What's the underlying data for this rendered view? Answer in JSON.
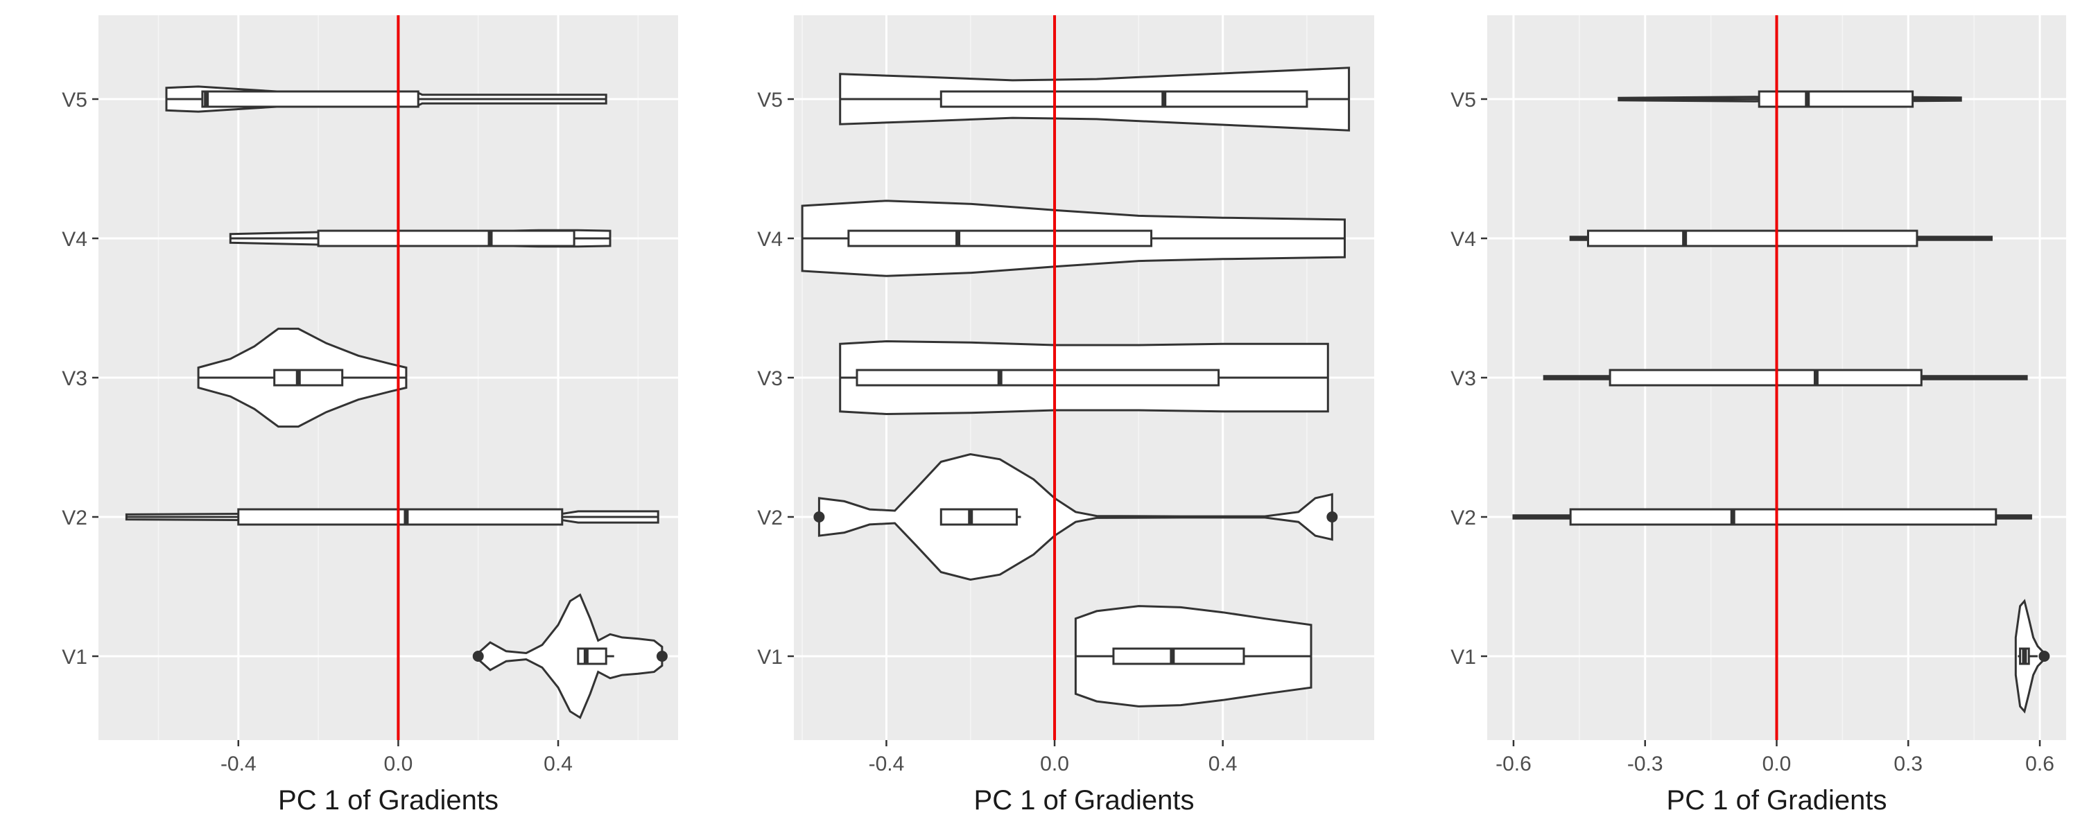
{
  "colors": {
    "panel_bg": "#ebebeb",
    "grid_major": "#ffffff",
    "grid_minor": "#f5f5f5",
    "mark_stroke": "#333333",
    "mark_fill": "#ffffff",
    "ref_line": "#ee0000",
    "tick_text": "#4d4d4d",
    "axis_title_text": "#1a1a1a"
  },
  "chart_data": [
    {
      "type": "violin",
      "xlabel": "PC 1 of Gradients",
      "ylabel": "",
      "xlim": [
        -0.75,
        0.7
      ],
      "xticks": [
        -0.4,
        0.0,
        0.4
      ],
      "xtick_labels": [
        "-0.4",
        "0.0",
        "0.4"
      ],
      "categories": [
        "V1",
        "V2",
        "V3",
        "V4",
        "V5"
      ],
      "grid": true,
      "reference_line": {
        "x": 0,
        "color": "#ee0000"
      },
      "series": [
        {
          "category": "V1",
          "min": 0.2,
          "max": 0.66,
          "q1": 0.45,
          "median": 0.47,
          "q3": 0.52,
          "whisker_low": 0.45,
          "whisker_high": 0.54,
          "outliers": [
            0.2,
            0.66
          ],
          "density": [
            [
              0.2,
              0.05
            ],
            [
              0.23,
              0.22
            ],
            [
              0.27,
              0.08
            ],
            [
              0.32,
              0.05
            ],
            [
              0.36,
              0.18
            ],
            [
              0.4,
              0.5
            ],
            [
              0.43,
              0.88
            ],
            [
              0.455,
              0.98
            ],
            [
              0.48,
              0.6
            ],
            [
              0.5,
              0.25
            ],
            [
              0.53,
              0.35
            ],
            [
              0.56,
              0.3
            ],
            [
              0.6,
              0.28
            ],
            [
              0.64,
              0.25
            ],
            [
              0.66,
              0.15
            ]
          ]
        },
        {
          "category": "V2",
          "min": -0.68,
          "max": 0.65,
          "q1": -0.4,
          "median": 0.02,
          "q3": 0.41,
          "whisker_low": -0.68,
          "whisker_high": 0.65,
          "outliers": [],
          "density": [
            [
              -0.68,
              0.04
            ],
            [
              -0.4,
              0.05
            ],
            [
              0.0,
              0.05
            ],
            [
              0.41,
              0.05
            ],
            [
              0.45,
              0.09
            ],
            [
              0.65,
              0.09
            ]
          ]
        },
        {
          "category": "V3",
          "min": -0.5,
          "max": 0.02,
          "q1": -0.31,
          "median": -0.25,
          "q3": -0.14,
          "whisker_low": -0.5,
          "whisker_high": 0.02,
          "outliers": [],
          "density": [
            [
              -0.5,
              0.16
            ],
            [
              -0.42,
              0.3
            ],
            [
              -0.36,
              0.5
            ],
            [
              -0.3,
              0.78
            ],
            [
              -0.25,
              0.78
            ],
            [
              -0.18,
              0.55
            ],
            [
              -0.1,
              0.35
            ],
            [
              -0.02,
              0.22
            ],
            [
              0.02,
              0.16
            ]
          ]
        },
        {
          "category": "V4",
          "min": -0.42,
          "max": 0.53,
          "q1": -0.2,
          "median": 0.23,
          "q3": 0.44,
          "whisker_low": -0.42,
          "whisker_high": 0.53,
          "outliers": [],
          "density": [
            [
              -0.42,
              0.07
            ],
            [
              -0.2,
              0.1
            ],
            [
              0.0,
              0.1
            ],
            [
              0.2,
              0.11
            ],
            [
              0.35,
              0.13
            ],
            [
              0.45,
              0.13
            ],
            [
              0.53,
              0.12
            ]
          ]
        },
        {
          "category": "V5",
          "min": -0.58,
          "max": 0.52,
          "q1": -0.49,
          "median": -0.48,
          "q3": 0.05,
          "whisker_low": -0.58,
          "whisker_high": 0.52,
          "outliers": [],
          "density": [
            [
              -0.58,
              0.18
            ],
            [
              -0.5,
              0.2
            ],
            [
              -0.4,
              0.16
            ],
            [
              -0.3,
              0.12
            ],
            [
              -0.1,
              0.11
            ],
            [
              0.05,
              0.1
            ],
            [
              0.06,
              0.07
            ],
            [
              0.3,
              0.07
            ],
            [
              0.52,
              0.07
            ]
          ]
        }
      ]
    },
    {
      "type": "violin",
      "xlabel": "PC 1 of Gradients",
      "ylabel": "",
      "xlim": [
        -0.62,
        0.76
      ],
      "xticks": [
        -0.4,
        0.0,
        0.4
      ],
      "xtick_labels": [
        "-0.4",
        "0.0",
        "0.4"
      ],
      "categories": [
        "V1",
        "V2",
        "V3",
        "V4",
        "V5"
      ],
      "grid": true,
      "reference_line": {
        "x": 0,
        "color": "#ee0000"
      },
      "series": [
        {
          "category": "V1",
          "min": 0.05,
          "max": 0.61,
          "q1": 0.14,
          "median": 0.28,
          "q3": 0.45,
          "whisker_low": 0.05,
          "whisker_high": 0.61,
          "outliers": [],
          "density": [
            [
              0.05,
              0.6
            ],
            [
              0.1,
              0.72
            ],
            [
              0.2,
              0.8
            ],
            [
              0.3,
              0.78
            ],
            [
              0.4,
              0.7
            ],
            [
              0.5,
              0.6
            ],
            [
              0.61,
              0.5
            ]
          ]
        },
        {
          "category": "V2",
          "min": -0.56,
          "max": 0.66,
          "q1": -0.27,
          "median": -0.2,
          "q3": -0.09,
          "whisker_low": -0.27,
          "whisker_high": -0.08,
          "outliers": [
            -0.56,
            0.66
          ],
          "density": [
            [
              -0.56,
              0.3
            ],
            [
              -0.5,
              0.25
            ],
            [
              -0.44,
              0.12
            ],
            [
              -0.38,
              0.1
            ],
            [
              -0.33,
              0.45
            ],
            [
              -0.27,
              0.88
            ],
            [
              -0.2,
              1.0
            ],
            [
              -0.13,
              0.92
            ],
            [
              -0.05,
              0.6
            ],
            [
              0.0,
              0.3
            ],
            [
              0.05,
              0.08
            ],
            [
              0.1,
              0.015
            ],
            [
              0.3,
              0.01
            ],
            [
              0.5,
              0.01
            ],
            [
              0.58,
              0.08
            ],
            [
              0.62,
              0.3
            ],
            [
              0.66,
              0.36
            ]
          ]
        },
        {
          "category": "V3",
          "min": -0.51,
          "max": 0.65,
          "q1": -0.47,
          "median": -0.13,
          "q3": 0.39,
          "whisker_low": -0.51,
          "whisker_high": 0.65,
          "outliers": [],
          "density": [
            [
              -0.51,
              0.54
            ],
            [
              -0.4,
              0.58
            ],
            [
              -0.2,
              0.56
            ],
            [
              0.0,
              0.52
            ],
            [
              0.2,
              0.52
            ],
            [
              0.4,
              0.54
            ],
            [
              0.65,
              0.54
            ]
          ]
        },
        {
          "category": "V4",
          "min": -0.6,
          "max": 0.69,
          "q1": -0.49,
          "median": -0.23,
          "q3": 0.23,
          "whisker_low": -0.6,
          "whisker_high": 0.69,
          "outliers": [],
          "density": [
            [
              -0.6,
              0.52
            ],
            [
              -0.4,
              0.6
            ],
            [
              -0.2,
              0.55
            ],
            [
              0.0,
              0.45
            ],
            [
              0.2,
              0.36
            ],
            [
              0.4,
              0.33
            ],
            [
              0.69,
              0.3
            ]
          ]
        },
        {
          "category": "V5",
          "min": -0.51,
          "max": 0.7,
          "q1": -0.27,
          "median": 0.26,
          "q3": 0.6,
          "whisker_low": -0.51,
          "whisker_high": 0.7,
          "outliers": [],
          "density": [
            [
              -0.51,
              0.4
            ],
            [
              -0.3,
              0.35
            ],
            [
              -0.1,
              0.3
            ],
            [
              0.1,
              0.32
            ],
            [
              0.3,
              0.38
            ],
            [
              0.5,
              0.44
            ],
            [
              0.7,
              0.5
            ]
          ]
        }
      ]
    },
    {
      "type": "violin",
      "xlabel": "PC 1 of Gradients",
      "ylabel": "",
      "xlim": [
        -0.66,
        0.66
      ],
      "xticks": [
        -0.6,
        -0.3,
        0.0,
        0.3,
        0.6
      ],
      "xtick_labels": [
        "-0.6",
        "-0.3",
        "0.0",
        "0.3",
        "0.6"
      ],
      "categories": [
        "V1",
        "V2",
        "V3",
        "V4",
        "V5"
      ],
      "grid": true,
      "reference_line": {
        "x": 0,
        "color": "#ee0000"
      },
      "series": [
        {
          "category": "V1",
          "min": 0.545,
          "max": 0.61,
          "q1": 0.555,
          "median": 0.565,
          "q3": 0.575,
          "whisker_low": 0.55,
          "whisker_high": 0.595,
          "outliers": [
            0.61
          ],
          "density": [
            [
              0.545,
              0.3
            ],
            [
              0.555,
              0.8
            ],
            [
              0.565,
              0.88
            ],
            [
              0.575,
              0.6
            ],
            [
              0.585,
              0.3
            ],
            [
              0.595,
              0.16
            ],
            [
              0.61,
              0.05
            ]
          ]
        },
        {
          "category": "V2",
          "min": -0.6,
          "max": 0.58,
          "q1": -0.47,
          "median": -0.1,
          "q3": 0.5,
          "whisker_low": -0.6,
          "whisker_high": 0.58,
          "outliers": [],
          "density": [
            [
              -0.6,
              0.025
            ],
            [
              0.0,
              0.025
            ],
            [
              0.58,
              0.025
            ]
          ]
        },
        {
          "category": "V3",
          "min": -0.53,
          "max": 0.57,
          "q1": -0.38,
          "median": 0.09,
          "q3": 0.33,
          "whisker_low": -0.53,
          "whisker_high": 0.57,
          "outliers": [],
          "density": [
            [
              -0.53,
              0.025
            ],
            [
              0.0,
              0.025
            ],
            [
              0.57,
              0.025
            ]
          ]
        },
        {
          "category": "V4",
          "min": -0.47,
          "max": 0.49,
          "q1": -0.43,
          "median": -0.21,
          "q3": 0.32,
          "whisker_low": -0.47,
          "whisker_high": 0.49,
          "outliers": [],
          "density": [
            [
              -0.47,
              0.025
            ],
            [
              0.0,
              0.025
            ],
            [
              0.49,
              0.025
            ]
          ]
        },
        {
          "category": "V5",
          "min": -0.36,
          "max": 0.42,
          "q1": -0.04,
          "median": 0.07,
          "q3": 0.31,
          "whisker_low": -0.36,
          "whisker_high": 0.42,
          "outliers": [],
          "density": [
            [
              -0.36,
              0.02
            ],
            [
              -0.05,
              0.035
            ],
            [
              0.0,
              0.03
            ],
            [
              0.31,
              0.03
            ],
            [
              0.42,
              0.025
            ]
          ]
        }
      ]
    }
  ]
}
